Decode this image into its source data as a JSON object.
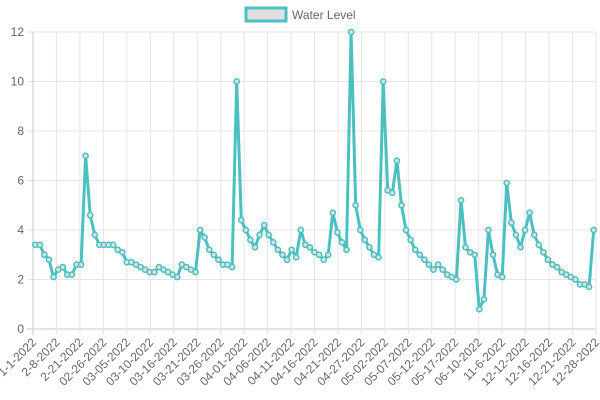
{
  "chart_data": {
    "type": "line",
    "series": [
      {
        "name": "Water Level",
        "color": "#4bc0c0",
        "fill": "#e0e0e0",
        "values": [
          3.4,
          3.4,
          3.0,
          2.8,
          2.1,
          2.4,
          2.5,
          2.2,
          2.2,
          2.6,
          2.6,
          7.0,
          4.6,
          3.8,
          3.4,
          3.4,
          3.4,
          3.4,
          3.2,
          3.1,
          2.7,
          2.7,
          2.6,
          2.5,
          2.4,
          2.3,
          2.3,
          2.5,
          2.4,
          2.3,
          2.2,
          2.1,
          2.6,
          2.5,
          2.4,
          2.3,
          4.0,
          3.7,
          3.2,
          3.0,
          2.8,
          2.6,
          2.6,
          2.5,
          10.0,
          4.4,
          4.0,
          3.6,
          3.3,
          3.8,
          4.2,
          3.8,
          3.5,
          3.2,
          3.0,
          2.8,
          3.2,
          2.9,
          4.0,
          3.4,
          3.3,
          3.1,
          3.0,
          2.8,
          3.0,
          4.7,
          3.9,
          3.5,
          3.2,
          12.0,
          5.0,
          4.0,
          3.6,
          3.3,
          3.0,
          2.9,
          10.0,
          5.6,
          5.5,
          6.8,
          5.0,
          4.0,
          3.6,
          3.2,
          3.0,
          2.8,
          2.6,
          2.4,
          2.6,
          2.4,
          2.2,
          2.1,
          2.0,
          5.2,
          3.3,
          3.1,
          3.0,
          0.8,
          1.2,
          4.0,
          3.0,
          2.2,
          2.1,
          5.9,
          4.3,
          3.8,
          3.3,
          4.0,
          4.7,
          3.8,
          3.4,
          3.1,
          2.8,
          2.6,
          2.5,
          2.3,
          2.2,
          2.1,
          2.0,
          1.8,
          1.8,
          1.7,
          4.0
        ]
      }
    ],
    "x_tick_labels": [
      "1-1-2022",
      "2-8-2022",
      "2-21-2022",
      "02-26-2022",
      "03-05-2022",
      "03-10-2022",
      "03-16-2022",
      "03-21-2022",
      "03-26-2022",
      "04-01-2022",
      "04-06-2022",
      "04-11-2022",
      "04-16-2022",
      "04-21-2022",
      "04-27-2022",
      "05-02-2022",
      "05-07-2022",
      "05-12-2022",
      "05-17-2022",
      "06-10-2022",
      "11-6-2022",
      "12-12-2022",
      "12-16-2022",
      "12-21-2022",
      "12-28-2022"
    ],
    "y_ticks": [
      0,
      2,
      4,
      6,
      8,
      10,
      12
    ],
    "ylim": [
      0,
      12
    ],
    "grid": true,
    "legend": "top-center"
  }
}
